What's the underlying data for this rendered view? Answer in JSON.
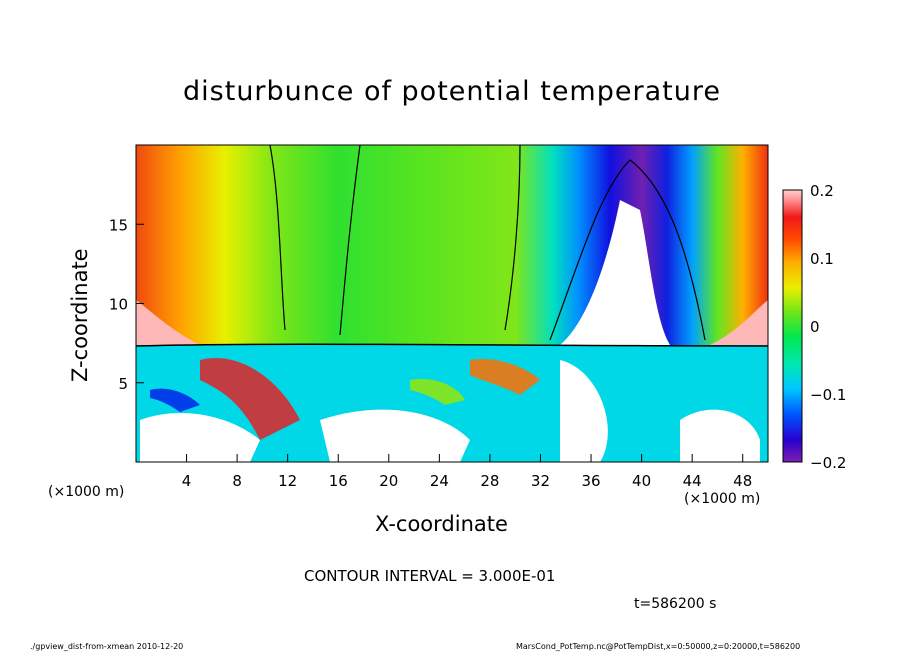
{
  "chart_data": {
    "type": "heatmap",
    "title": "disturbunce of potential temperature",
    "xlabel": "X-coordinate",
    "ylabel": "Z-coordinate",
    "x_unit_label": "(×1000 m)",
    "xlim": [
      0,
      50
    ],
    "ylim": [
      0,
      20
    ],
    "x_ticks": [
      "4",
      "8",
      "12",
      "16",
      "20",
      "24",
      "28",
      "32",
      "36",
      "40",
      "44",
      "48"
    ],
    "y_ticks": [
      "5",
      "10",
      "15"
    ],
    "colorbar": {
      "range": [
        -0.2,
        0.2
      ],
      "tick_labels": [
        "0.2",
        "0.1",
        "0",
        "−0.1",
        "−0.2"
      ],
      "colors": [
        "#7e1fb0",
        "#3a00c8",
        "#0018e8",
        "#0070ff",
        "#00b4ff",
        "#00e0e0",
        "#00ecaa",
        "#00e860",
        "#44e41c",
        "#8ce614",
        "#c8ee14",
        "#f0f000",
        "#ffcc00",
        "#ffa000",
        "#ff6e00",
        "#ff3010",
        "#f01818",
        "#ff6a6a",
        "#ffb8b8",
        "#ffffff"
      ]
    },
    "contour_interval_text": "CONTOUR INTERVAL = 3.000E-01",
    "time_text": "t=586200 s"
  },
  "footer": {
    "left": "./gpview_dist-from-xmean  2010-12-20",
    "right": "MarsCond_PotTemp.nc@PotTempDist,x=0:50000,z=0:20000,t=586200"
  }
}
